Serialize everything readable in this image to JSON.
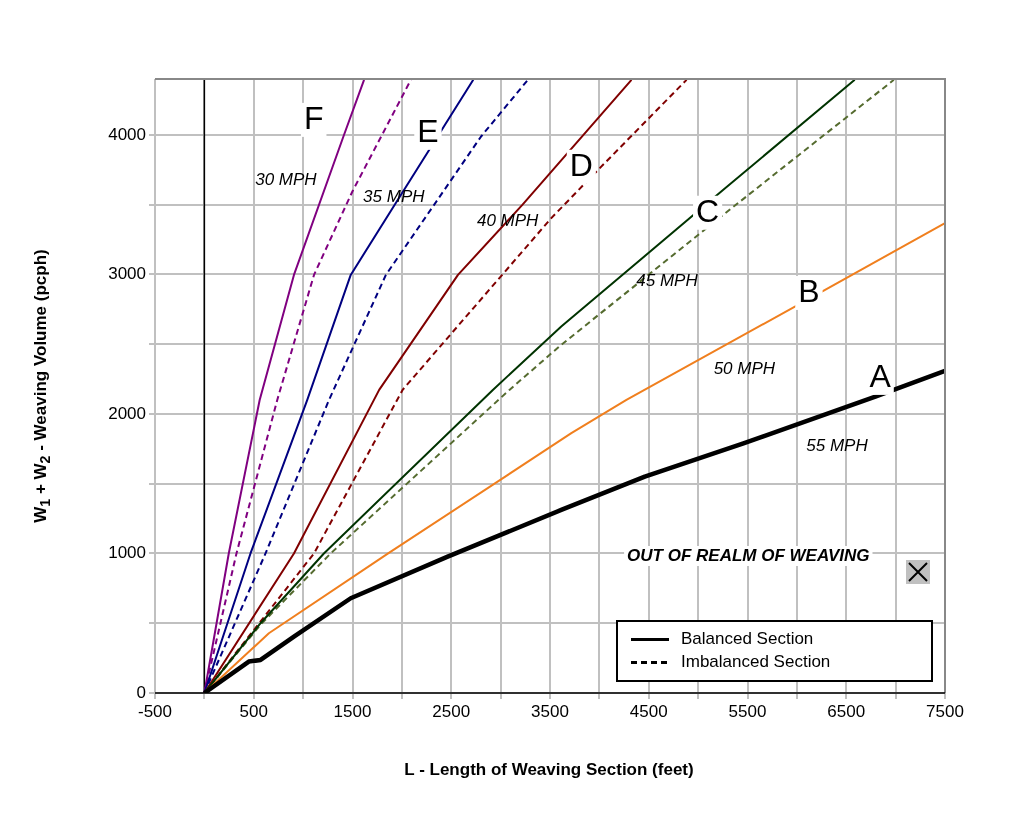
{
  "chart_data": {
    "type": "line",
    "xlabel": "L - Length of Weaving Section (feet)",
    "ylabel": "W$_{1}$ + W$_{2}$ - Weaving Volume (pcph)",
    "xlim": [
      -500,
      7500
    ],
    "ylim": [
      0,
      4400
    ],
    "xticks": [
      -500,
      {
        "value": 0,
        "label": null
      },
      500,
      {
        "value": 1000,
        "label": null
      },
      1500,
      {
        "value": 2000,
        "label": null
      },
      2500,
      {
        "value": 3000,
        "label": null
      },
      3500,
      {
        "value": 4000,
        "label": null
      },
      4500,
      {
        "value": 5000,
        "label": null
      },
      5500,
      {
        "value": 6000,
        "label": null
      },
      6500,
      {
        "value": 7000,
        "label": null
      },
      7500
    ],
    "yticks": [
      0,
      {
        "value": 500,
        "label": null
      },
      1000,
      {
        "value": 1500,
        "label": null
      },
      2000,
      {
        "value": 2500,
        "label": null
      },
      3000,
      {
        "value": 3500,
        "label": null
      },
      4000
    ],
    "grid": true,
    "legend": "bottom right",
    "marker": "none",
    "ref_lines": [
      {
        "axis": "x",
        "value": 0,
        "color": "#000000"
      }
    ],
    "series": [
      {
        "color": "#000000",
        "line_style": "solid",
        "x": [
          0,
          450,
          569,
          907,
          1482,
          2464,
          3614,
          4460,
          5459,
          6795,
          7500
        ],
        "values": [
          0,
          225,
          237,
          404,
          679,
          977,
          1312,
          1551,
          1789,
          2124,
          2308
        ]
      },
      {
        "color": "#f07f1e",
        "line_style": "solid",
        "x": [
          0,
          653,
          1861,
          3716,
          4274,
          6254,
          7500
        ],
        "values": [
          0,
          428,
          1000,
          1862,
          2100,
          2877,
          3367
        ]
      },
      {
        "color": "#003300",
        "line_style": "solid",
        "x": [
          0,
          569,
          1210,
          2921,
          3614,
          5255,
          6586
        ],
        "values": [
          0,
          500,
          1000,
          2172,
          2626,
          3606,
          4394
        ]
      },
      {
        "color": "#556b2f",
        "line_style": "dashed",
        "x": [
          0,
          569,
          1279,
          3089,
          3614,
          5255,
          6982
        ],
        "values": [
          0,
          490,
          1000,
          2172,
          2495,
          3427,
          4394
        ]
      },
      {
        "color": "#800000",
        "line_style": "solid",
        "x": [
          0,
          907,
          1770,
          2568,
          3222,
          4325
        ],
        "values": [
          0,
          1000,
          2172,
          2996,
          3500,
          4394
        ]
      },
      {
        "color": "#800000",
        "line_style": "dashed",
        "x": [
          0,
          1110,
          2007,
          3513,
          3987,
          4883
        ],
        "values": [
          0,
          1000,
          2172,
          3403,
          3749,
          4394
        ]
      },
      {
        "color": "#000080",
        "line_style": "solid",
        "x": [
          0,
          467,
          1042,
          1482,
          1929,
          2723
        ],
        "values": [
          0,
          1000,
          2100,
          2996,
          3500,
          4394
        ]
      },
      {
        "color": "#000080",
        "line_style": "dashed",
        "x": [
          0,
          619,
          1262,
          1838,
          2802,
          3276
        ],
        "values": [
          0,
          1000,
          2100,
          2996,
          3988,
          4394
        ]
      },
      {
        "color": "#800080",
        "line_style": "solid",
        "x": [
          0,
          247,
          560,
          907,
          1408,
          1617
        ],
        "values": [
          0,
          1000,
          2100,
          2996,
          3988,
          4394
        ]
      },
      {
        "color": "#800080",
        "line_style": "dashed",
        "x": [
          0,
          325,
          738,
          1110,
          1499,
          2091
        ],
        "values": [
          0,
          1000,
          2100,
          2996,
          3594,
          4394
        ]
      },
      {
        "name": "Balanced Section",
        "color": "#000000",
        "line_style": "solid"
      },
      {
        "name": "Imbalanced Section",
        "color": "#000000",
        "line_style": "dashed"
      }
    ],
    "annotations": [
      {
        "text": "F",
        "x": 1107,
        "y": 4107
      },
      {
        "text": "E",
        "x": 2264,
        "y": 4014
      },
      {
        "text": "D",
        "x": 3817,
        "y": 3771
      },
      {
        "text": "C",
        "x": 5096,
        "y": 3441
      },
      {
        "text": "B",
        "x": 6122,
        "y": 2867
      },
      {
        "text": "A",
        "x": 6843,
        "y": 2258
      },
      {
        "text": "30 MPH",
        "x": 1251,
        "y": 3677
      },
      {
        "text": "35 MPH",
        "x": 1979,
        "y": 3556
      },
      {
        "text": "40 MPH",
        "x": 3071,
        "y": 3384
      },
      {
        "text": "45 MPH",
        "x": 4259,
        "y": 3011
      },
      "50 MPH",
      {
        "text": "55 MPH",
        "x": 6406,
        "y": 2026
      },
      "OUT OF REALM OF WEAVING"
    ]
  }
}
